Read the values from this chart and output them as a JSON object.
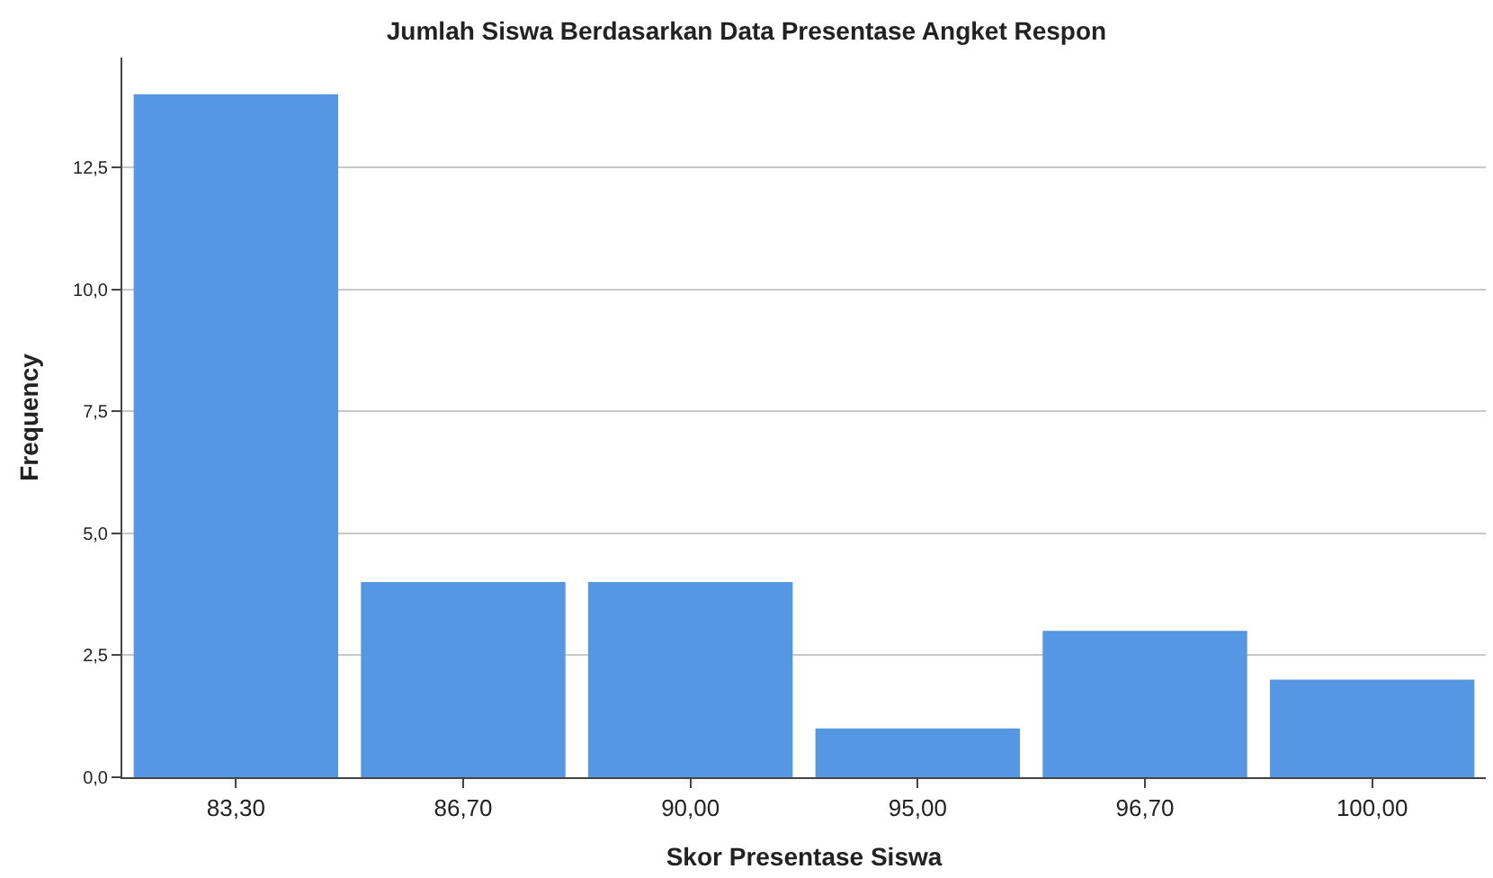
{
  "chart_data": {
    "type": "bar",
    "title": "Jumlah Siswa Berdasarkan Data Presentase Angket Respon",
    "xlabel": "Skor Presentase Siswa",
    "ylabel": "Frequency",
    "categories": [
      "83,30",
      "86,70",
      "90,00",
      "95,00",
      "96,70",
      "100,00"
    ],
    "values": [
      14,
      4,
      4,
      1,
      3,
      2
    ],
    "color": "#5597e2",
    "ylim": [
      0,
      14.75
    ],
    "yticks": [
      {
        "value": 0,
        "label": "0,0"
      },
      {
        "value": 2.5,
        "label": "2,5"
      },
      {
        "value": 5,
        "label": "5,0"
      },
      {
        "value": 7.5,
        "label": "7,5"
      },
      {
        "value": 10,
        "label": "10,0"
      },
      {
        "value": 12.5,
        "label": "12,5"
      }
    ],
    "grid": "y"
  }
}
